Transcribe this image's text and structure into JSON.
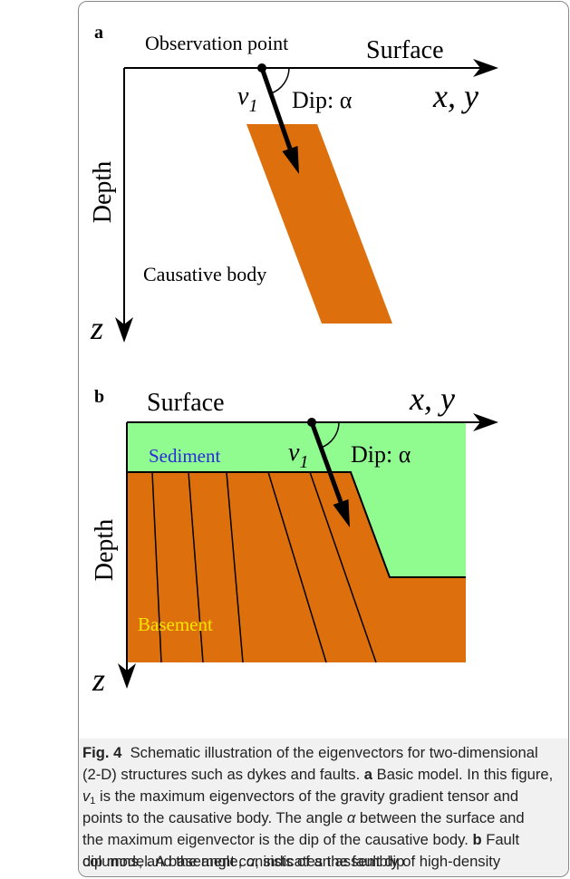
{
  "figure": {
    "panel_a": {
      "label": "a",
      "observation": "Observation point",
      "surface": "Surface",
      "vector": "v",
      "vector_sub": "1",
      "dip": "Dip: α",
      "axes": "x, y",
      "depth": "Depth",
      "body": "Causative body",
      "z": "z"
    },
    "panel_b": {
      "label": "b",
      "surface": "Surface",
      "axes": "x, y",
      "sediment": "Sediment",
      "vector": "v",
      "vector_sub": "1",
      "dip": "Dip: α",
      "depth": "Depth",
      "basement": "Basement",
      "z": "z"
    }
  },
  "caption": {
    "lines": [
      [
        "Fig. 4",
        "Schematic illustration of the eigenvectors for two-dimensional"
      ],
      [
        "(2-D) structures such as dykes and faults. ",
        "a",
        " Basic model. In this figure,"
      ],
      [
        "v",
        "1",
        " is the maximum eigenvectors of the gravity gradient tensor and"
      ],
      [
        "points to the causative body. The angle ",
        "α",
        " between the surface and"
      ],
      [
        "the maximum eigenvector is the dip of the causative body. ",
        "b",
        " Fault"
      ],
      [
        "dip model. A basement consists of an assembly of high-density"
      ],
      [
        "columns, and the angle, ",
        "α",
        ", indicates the fault dip"
      ]
    ]
  }
}
